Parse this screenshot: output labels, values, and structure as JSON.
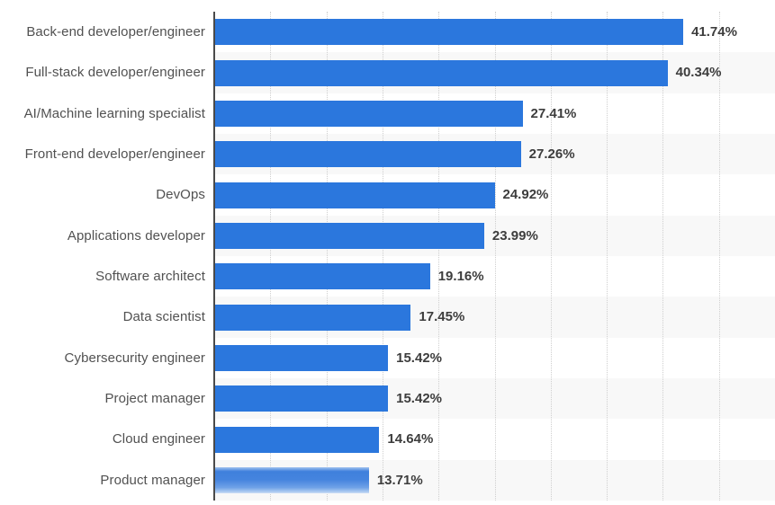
{
  "chart_data": {
    "type": "bar",
    "orientation": "horizontal",
    "title": "",
    "xlabel": "",
    "ylabel": "",
    "categories": [
      "Back-end developer/engineer",
      "Full-stack developer/engineer",
      "AI/Machine learning specialist",
      "Front-end developer/engineer",
      "DevOps",
      "Applications developer",
      "Software architect",
      "Data scientist",
      "Cybersecurity engineer",
      "Project manager",
      "Cloud engineer",
      "Product manager"
    ],
    "values": [
      41.74,
      40.34,
      27.41,
      27.26,
      24.92,
      23.99,
      19.16,
      17.45,
      15.42,
      15.42,
      14.64,
      13.71
    ],
    "value_labels": [
      "41.74%",
      "40.34%",
      "27.41%",
      "27.26%",
      "24.92%",
      "23.99%",
      "19.16%",
      "17.45%",
      "15.42%",
      "15.42%",
      "14.64%",
      "13.71%"
    ],
    "xlim": [
      0,
      50
    ],
    "gridline_step": 5,
    "grid": "vertical-dotted",
    "legend": "none",
    "hovered_category_index": 11,
    "banded_row_parity": "odd",
    "colors": {
      "bar": "#2b77dd",
      "band": "#f8f8f8",
      "gridline": "#cfcfcf",
      "axis": "#4a4a4a",
      "category_label": "#515151",
      "value_label": "#3d3d3d",
      "background": "#ffffff"
    }
  }
}
